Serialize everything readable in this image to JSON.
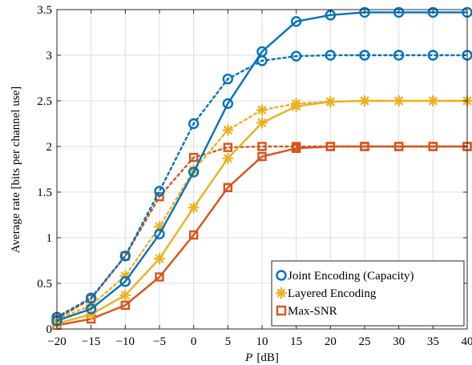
{
  "chart_data": {
    "type": "line",
    "title": "",
    "xlabel_var": "P",
    "xlabel_unit": "[dB]",
    "ylabel": "Average rate [bits per channel use]",
    "xlim": [
      -20,
      40
    ],
    "ylim": [
      0,
      3.5
    ],
    "xticks": [
      -20,
      -15,
      -10,
      -5,
      0,
      5,
      10,
      15,
      20,
      25,
      30,
      35,
      40
    ],
    "xtick_labels": [
      "−20",
      "−15",
      "−10",
      "−5",
      "0",
      "5",
      "10",
      "15",
      "20",
      "25",
      "30",
      "35",
      "40"
    ],
    "yticks": [
      0,
      0.5,
      1,
      1.5,
      2,
      2.5,
      3,
      3.5
    ],
    "ytick_labels": [
      "0",
      "0.5",
      "1",
      "1.5",
      "2",
      "2.5",
      "3",
      "3.5"
    ],
    "grid": true,
    "legend_position": "bottom-right",
    "x": [
      -20,
      -15,
      -10,
      -5,
      0,
      5,
      10,
      15,
      20,
      25,
      30,
      35,
      40
    ],
    "series": [
      {
        "name": "Joint Encoding (Capacity)",
        "color": "#0072BD",
        "marker": "circle",
        "linestyle": "solid",
        "values": [
          0.09,
          0.22,
          0.52,
          1.04,
          1.72,
          2.47,
          3.04,
          3.37,
          3.44,
          3.47,
          3.47,
          3.47,
          3.47
        ]
      },
      {
        "name": "",
        "color": "#0072BD",
        "marker": "circle",
        "linestyle": "dotted",
        "values": [
          0.13,
          0.34,
          0.8,
          1.51,
          2.25,
          2.74,
          2.94,
          2.99,
          3.0,
          3.0,
          3.0,
          3.0,
          3.0
        ]
      },
      {
        "name": "Layered Encoding",
        "color": "#EDB120",
        "marker": "star",
        "linestyle": "solid",
        "values": [
          0.06,
          0.16,
          0.37,
          0.77,
          1.33,
          1.87,
          2.26,
          2.44,
          2.49,
          2.5,
          2.5,
          2.5,
          2.5
        ]
      },
      {
        "name": "",
        "color": "#EDB120",
        "marker": "star",
        "linestyle": "dotted",
        "values": [
          0.1,
          0.26,
          0.58,
          1.12,
          1.74,
          2.18,
          2.4,
          2.47,
          2.49,
          2.5,
          2.5,
          2.5,
          2.5
        ]
      },
      {
        "name": "Max-SNR",
        "color": "#D95319",
        "marker": "square",
        "linestyle": "solid",
        "values": [
          0.04,
          0.11,
          0.26,
          0.57,
          1.03,
          1.55,
          1.89,
          1.98,
          2.0,
          2.0,
          2.0,
          2.0,
          2.0
        ]
      },
      {
        "name": "",
        "color": "#D95319",
        "marker": "square",
        "linestyle": "dotted",
        "values": [
          0.11,
          0.33,
          0.8,
          1.45,
          1.88,
          1.99,
          2.0,
          2.0,
          2.0,
          2.0,
          2.0,
          2.0,
          2.0
        ]
      }
    ]
  }
}
